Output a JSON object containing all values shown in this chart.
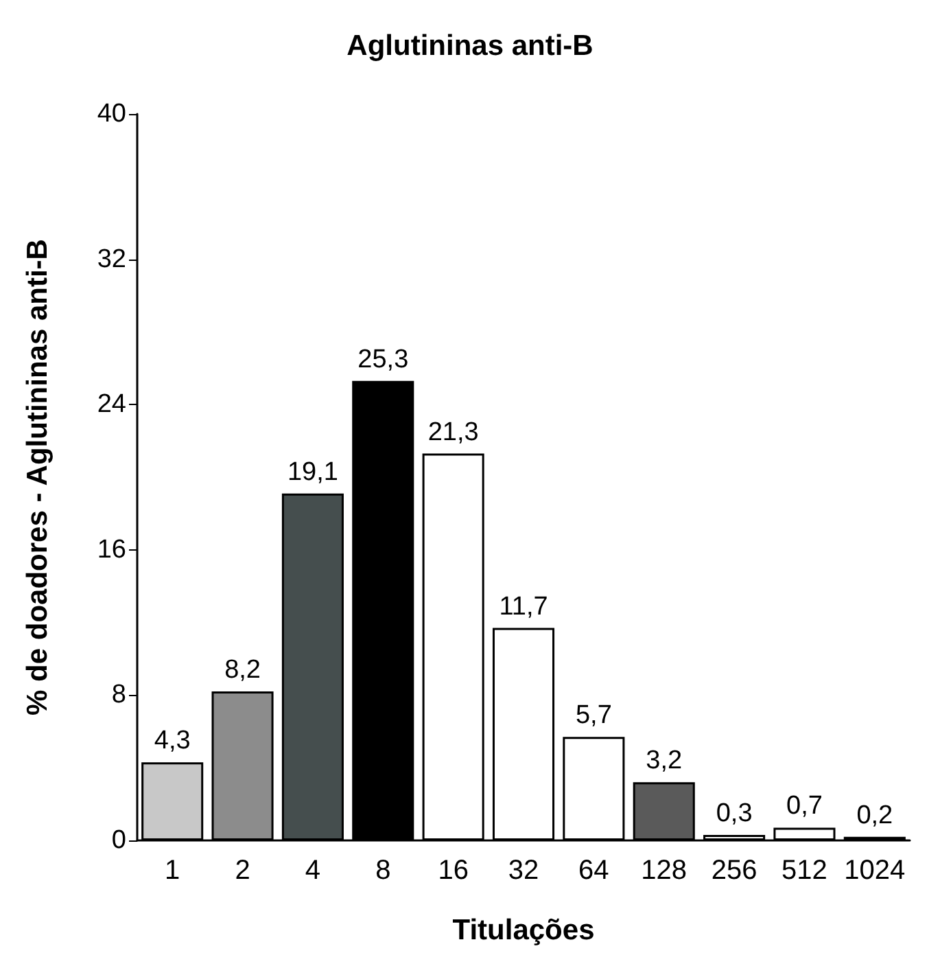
{
  "chart_data": {
    "type": "bar",
    "title": "Aglutininas anti-B",
    "xlabel": "Titulações",
    "ylabel": "% de doadores - Aglutininas anti-B",
    "categories": [
      "1",
      "2",
      "4",
      "8",
      "16",
      "32",
      "64",
      "128",
      "256",
      "512",
      "1024"
    ],
    "values": [
      4.3,
      8.2,
      19.1,
      25.3,
      21.3,
      11.7,
      5.7,
      3.2,
      0.3,
      0.7,
      0.2
    ],
    "value_labels": [
      "4,3",
      "8,2",
      "19,1",
      "25,3",
      "21,3",
      "11,7",
      "5,7",
      "3,2",
      "0,3",
      "0,7",
      "0,2"
    ],
    "colors": [
      "#c8c8c8",
      "#8c8c8c",
      "#454e4e",
      "#000000",
      "#ffffff",
      "#ffffff",
      "#ffffff",
      "#5a5a5a",
      "#ffffff",
      "#ffffff",
      "#000000"
    ],
    "ylim": [
      0,
      40
    ],
    "yticks": [
      0,
      8,
      16,
      24,
      32,
      40
    ],
    "grid": false
  }
}
